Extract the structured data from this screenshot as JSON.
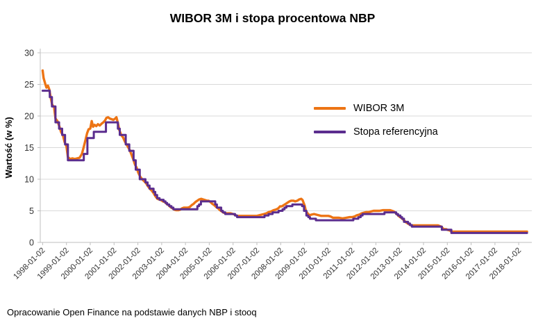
{
  "title": "WIBOR 3M i stopa procentowa NBP",
  "footer": "Opracowanie Open Finance na podstawie danych NBP i stooq",
  "chart_data": {
    "type": "line",
    "title": "WIBOR 3M i stopa procentowa NBP",
    "xlabel": "",
    "ylabel": "Wartość (w %)",
    "ylim": [
      0,
      30
    ],
    "xlim": [
      1997.9,
      2018.55
    ],
    "y_ticks": [
      0,
      5,
      10,
      15,
      20,
      25,
      30
    ],
    "x_tick_labels": [
      "1998-01-02",
      "1999-01-02",
      "2000-01-02",
      "2001-01-02",
      "2002-01-02",
      "2003-01-02",
      "2004-01-02",
      "2005-01-02",
      "2006-01-02",
      "2007-01-02",
      "2008-01-02",
      "2009-01-02",
      "2010-01-02",
      "2011-01-02",
      "2012-01-02",
      "2013-01-02",
      "2014-01-02",
      "2015-01-02",
      "2016-01-02",
      "2017-01-02",
      "2018-01-02"
    ],
    "grid": "horizontal",
    "legend_position": "inside-upper-right",
    "series": [
      {
        "name": "WIBOR 3M",
        "color": "#ED7414",
        "width": 3.4,
        "step": false,
        "points": [
          [
            1998.0,
            27.2
          ],
          [
            1998.04,
            26.0
          ],
          [
            1998.1,
            25.2
          ],
          [
            1998.16,
            24.5
          ],
          [
            1998.22,
            24.8
          ],
          [
            1998.28,
            24.2
          ],
          [
            1998.33,
            23.1
          ],
          [
            1998.4,
            21.8
          ],
          [
            1998.48,
            21.4
          ],
          [
            1998.54,
            19.6
          ],
          [
            1998.62,
            19.2
          ],
          [
            1998.7,
            18.4
          ],
          [
            1998.78,
            17.4
          ],
          [
            1998.85,
            17.0
          ],
          [
            1998.92,
            15.9
          ],
          [
            1999.0,
            15.2
          ],
          [
            1999.06,
            13.5
          ],
          [
            1999.15,
            13.2
          ],
          [
            1999.25,
            13.3
          ],
          [
            1999.35,
            13.2
          ],
          [
            1999.45,
            13.3
          ],
          [
            1999.55,
            13.4
          ],
          [
            1999.65,
            14.0
          ],
          [
            1999.72,
            15.0
          ],
          [
            1999.8,
            16.2
          ],
          [
            1999.87,
            17.3
          ],
          [
            1999.93,
            17.9
          ],
          [
            2000.0,
            18.0
          ],
          [
            2000.06,
            19.2
          ],
          [
            2000.12,
            18.3
          ],
          [
            2000.18,
            18.6
          ],
          [
            2000.25,
            18.4
          ],
          [
            2000.32,
            18.7
          ],
          [
            2000.4,
            18.5
          ],
          [
            2000.48,
            18.8
          ],
          [
            2000.55,
            19.0
          ],
          [
            2000.62,
            19.3
          ],
          [
            2000.68,
            19.7
          ],
          [
            2000.75,
            19.8
          ],
          [
            2000.82,
            19.6
          ],
          [
            2000.9,
            19.5
          ],
          [
            2000.97,
            19.4
          ],
          [
            2001.05,
            19.6
          ],
          [
            2001.1,
            19.8
          ],
          [
            2001.16,
            18.9
          ],
          [
            2001.22,
            17.8
          ],
          [
            2001.3,
            17.0
          ],
          [
            2001.38,
            16.6
          ],
          [
            2001.45,
            16.0
          ],
          [
            2001.52,
            15.5
          ],
          [
            2001.6,
            15.0
          ],
          [
            2001.66,
            14.6
          ],
          [
            2001.74,
            13.8
          ],
          [
            2001.82,
            13.0
          ],
          [
            2001.88,
            12.3
          ],
          [
            2001.95,
            11.8
          ],
          [
            2002.02,
            11.0
          ],
          [
            2002.1,
            10.4
          ],
          [
            2002.18,
            10.0
          ],
          [
            2002.26,
            9.7
          ],
          [
            2002.34,
            9.4
          ],
          [
            2002.42,
            8.9
          ],
          [
            2002.5,
            8.5
          ],
          [
            2002.58,
            8.2
          ],
          [
            2002.66,
            7.8
          ],
          [
            2002.74,
            7.3
          ],
          [
            2002.82,
            6.9
          ],
          [
            2002.9,
            6.8
          ],
          [
            2002.97,
            6.7
          ],
          [
            2003.05,
            6.5
          ],
          [
            2003.13,
            6.4
          ],
          [
            2003.21,
            6.1
          ],
          [
            2003.29,
            5.9
          ],
          [
            2003.37,
            5.6
          ],
          [
            2003.45,
            5.4
          ],
          [
            2003.53,
            5.2
          ],
          [
            2003.61,
            5.1
          ],
          [
            2003.7,
            5.1
          ],
          [
            2003.78,
            5.2
          ],
          [
            2003.86,
            5.4
          ],
          [
            2003.94,
            5.5
          ],
          [
            2004.02,
            5.5
          ],
          [
            2004.1,
            5.5
          ],
          [
            2004.18,
            5.6
          ],
          [
            2004.26,
            5.9
          ],
          [
            2004.34,
            6.1
          ],
          [
            2004.42,
            6.4
          ],
          [
            2004.5,
            6.6
          ],
          [
            2004.58,
            6.8
          ],
          [
            2004.66,
            6.9
          ],
          [
            2004.74,
            6.8
          ],
          [
            2004.82,
            6.7
          ],
          [
            2004.9,
            6.6
          ],
          [
            2004.97,
            6.6
          ],
          [
            2005.05,
            6.4
          ],
          [
            2005.13,
            6.1
          ],
          [
            2005.21,
            5.9
          ],
          [
            2005.29,
            5.6
          ],
          [
            2005.37,
            5.4
          ],
          [
            2005.45,
            5.1
          ],
          [
            2005.53,
            4.9
          ],
          [
            2005.61,
            4.7
          ],
          [
            2005.7,
            4.6
          ],
          [
            2005.8,
            4.6
          ],
          [
            2005.9,
            4.6
          ],
          [
            2006.0,
            4.5
          ],
          [
            2006.08,
            4.4
          ],
          [
            2006.16,
            4.2
          ],
          [
            2006.25,
            4.2
          ],
          [
            2006.4,
            4.2
          ],
          [
            2006.55,
            4.2
          ],
          [
            2006.7,
            4.2
          ],
          [
            2006.85,
            4.2
          ],
          [
            2007.0,
            4.2
          ],
          [
            2007.1,
            4.3
          ],
          [
            2007.2,
            4.4
          ],
          [
            2007.3,
            4.5
          ],
          [
            2007.4,
            4.6
          ],
          [
            2007.5,
            4.8
          ],
          [
            2007.6,
            4.9
          ],
          [
            2007.7,
            5.1
          ],
          [
            2007.8,
            5.2
          ],
          [
            2007.9,
            5.4
          ],
          [
            2007.97,
            5.7
          ],
          [
            2008.05,
            5.7
          ],
          [
            2008.13,
            5.9
          ],
          [
            2008.21,
            6.1
          ],
          [
            2008.29,
            6.3
          ],
          [
            2008.37,
            6.5
          ],
          [
            2008.45,
            6.6
          ],
          [
            2008.53,
            6.6
          ],
          [
            2008.61,
            6.5
          ],
          [
            2008.7,
            6.6
          ],
          [
            2008.78,
            6.8
          ],
          [
            2008.86,
            6.9
          ],
          [
            2008.92,
            6.7
          ],
          [
            2009.0,
            5.9
          ],
          [
            2009.06,
            5.0
          ],
          [
            2009.13,
            4.6
          ],
          [
            2009.21,
            4.3
          ],
          [
            2009.29,
            4.4
          ],
          [
            2009.4,
            4.5
          ],
          [
            2009.5,
            4.4
          ],
          [
            2009.6,
            4.3
          ],
          [
            2009.7,
            4.2
          ],
          [
            2009.8,
            4.2
          ],
          [
            2009.9,
            4.2
          ],
          [
            2010.0,
            4.2
          ],
          [
            2010.1,
            4.1
          ],
          [
            2010.2,
            3.9
          ],
          [
            2010.3,
            3.9
          ],
          [
            2010.45,
            3.9
          ],
          [
            2010.6,
            3.8
          ],
          [
            2010.75,
            3.9
          ],
          [
            2010.9,
            4.0
          ],
          [
            2011.0,
            4.0
          ],
          [
            2011.1,
            4.1
          ],
          [
            2011.2,
            4.3
          ],
          [
            2011.3,
            4.4
          ],
          [
            2011.4,
            4.6
          ],
          [
            2011.5,
            4.7
          ],
          [
            2011.6,
            4.8
          ],
          [
            2011.7,
            4.8
          ],
          [
            2011.8,
            4.9
          ],
          [
            2011.9,
            5.0
          ],
          [
            2012.0,
            5.0
          ],
          [
            2012.15,
            5.0
          ],
          [
            2012.3,
            5.1
          ],
          [
            2012.45,
            5.1
          ],
          [
            2012.6,
            5.1
          ],
          [
            2012.75,
            4.9
          ],
          [
            2012.85,
            4.6
          ],
          [
            2012.95,
            4.2
          ],
          [
            2013.02,
            4.0
          ],
          [
            2013.1,
            3.8
          ],
          [
            2013.18,
            3.5
          ],
          [
            2013.26,
            3.2
          ],
          [
            2013.34,
            3.0
          ],
          [
            2013.42,
            2.8
          ],
          [
            2013.5,
            2.7
          ],
          [
            2013.6,
            2.7
          ],
          [
            2013.75,
            2.7
          ],
          [
            2013.9,
            2.7
          ],
          [
            2014.0,
            2.7
          ],
          [
            2014.2,
            2.7
          ],
          [
            2014.4,
            2.7
          ],
          [
            2014.6,
            2.7
          ],
          [
            2014.75,
            2.5
          ],
          [
            2014.85,
            2.1
          ],
          [
            2014.95,
            2.1
          ],
          [
            2015.0,
            2.0
          ],
          [
            2015.1,
            1.9
          ],
          [
            2015.2,
            1.7
          ],
          [
            2015.4,
            1.7
          ],
          [
            2015.6,
            1.7
          ],
          [
            2015.8,
            1.7
          ],
          [
            2016.0,
            1.7
          ],
          [
            2016.25,
            1.7
          ],
          [
            2016.5,
            1.7
          ],
          [
            2016.75,
            1.7
          ],
          [
            2017.0,
            1.7
          ],
          [
            2017.25,
            1.7
          ],
          [
            2017.5,
            1.7
          ],
          [
            2017.75,
            1.7
          ],
          [
            2018.0,
            1.7
          ],
          [
            2018.2,
            1.7
          ],
          [
            2018.35,
            1.7
          ]
        ]
      },
      {
        "name": "Stopa referencyjna",
        "color": "#5B2D8E",
        "width": 3,
        "step": true,
        "points": [
          [
            1998.0,
            24.0
          ],
          [
            1998.3,
            23.0
          ],
          [
            1998.39,
            21.5
          ],
          [
            1998.54,
            19.0
          ],
          [
            1998.69,
            18.0
          ],
          [
            1998.82,
            17.0
          ],
          [
            1998.94,
            15.5
          ],
          [
            1999.06,
            13.0
          ],
          [
            1999.73,
            14.0
          ],
          [
            1999.88,
            16.5
          ],
          [
            2000.15,
            17.5
          ],
          [
            2000.66,
            19.0
          ],
          [
            2001.16,
            18.0
          ],
          [
            2001.24,
            17.0
          ],
          [
            2001.49,
            15.5
          ],
          [
            2001.64,
            14.5
          ],
          [
            2001.82,
            13.0
          ],
          [
            2001.91,
            11.5
          ],
          [
            2002.08,
            10.0
          ],
          [
            2002.32,
            9.5
          ],
          [
            2002.41,
            9.0
          ],
          [
            2002.49,
            8.5
          ],
          [
            2002.66,
            8.0
          ],
          [
            2002.73,
            7.5
          ],
          [
            2002.81,
            7.0
          ],
          [
            2002.91,
            6.75
          ],
          [
            2003.08,
            6.5
          ],
          [
            2003.16,
            6.25
          ],
          [
            2003.23,
            6.0
          ],
          [
            2003.32,
            5.75
          ],
          [
            2003.41,
            5.5
          ],
          [
            2003.49,
            5.25
          ],
          [
            2004.5,
            5.75
          ],
          [
            2004.57,
            6.0
          ],
          [
            2004.65,
            6.5
          ],
          [
            2005.25,
            6.0
          ],
          [
            2005.32,
            5.5
          ],
          [
            2005.5,
            5.0
          ],
          [
            2005.57,
            4.75
          ],
          [
            2005.67,
            4.5
          ],
          [
            2006.08,
            4.25
          ],
          [
            2006.17,
            4.0
          ],
          [
            2007.32,
            4.25
          ],
          [
            2007.49,
            4.5
          ],
          [
            2007.66,
            4.75
          ],
          [
            2007.91,
            5.0
          ],
          [
            2008.08,
            5.25
          ],
          [
            2008.16,
            5.5
          ],
          [
            2008.24,
            5.75
          ],
          [
            2008.49,
            6.0
          ],
          [
            2008.9,
            5.75
          ],
          [
            2008.98,
            5.0
          ],
          [
            2009.08,
            4.25
          ],
          [
            2009.16,
            4.0
          ],
          [
            2009.23,
            3.75
          ],
          [
            2009.48,
            3.5
          ],
          [
            2011.05,
            3.75
          ],
          [
            2011.26,
            4.0
          ],
          [
            2011.36,
            4.25
          ],
          [
            2011.44,
            4.5
          ],
          [
            2012.36,
            4.75
          ],
          [
            2012.85,
            4.5
          ],
          [
            2012.93,
            4.25
          ],
          [
            2013.03,
            4.0
          ],
          [
            2013.1,
            3.75
          ],
          [
            2013.18,
            3.25
          ],
          [
            2013.35,
            3.0
          ],
          [
            2013.43,
            2.75
          ],
          [
            2013.51,
            2.5
          ],
          [
            2014.77,
            2.0
          ],
          [
            2015.17,
            1.5
          ],
          [
            2018.35,
            1.5
          ]
        ]
      }
    ]
  }
}
